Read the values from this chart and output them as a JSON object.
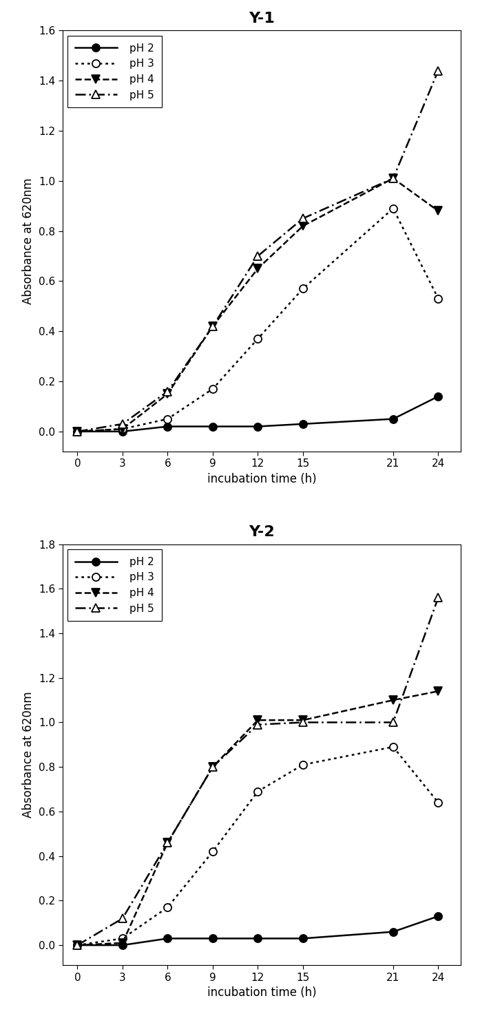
{
  "plots": [
    {
      "title": "Y-1",
      "ylabel": "Absorbance at 620nm",
      "xlabel": "incubation time (h)",
      "ylim": [
        -0.08,
        1.6
      ],
      "yticks": [
        0.0,
        0.2,
        0.4,
        0.6,
        0.8,
        1.0,
        1.2,
        1.4,
        1.6
      ],
      "xticks": [
        0,
        3,
        6,
        9,
        12,
        15,
        21,
        24
      ],
      "xlim": [
        -1,
        25.5
      ],
      "x": [
        0,
        3,
        6,
        9,
        12,
        15,
        21,
        24
      ],
      "series": [
        {
          "label": "pH 2",
          "y": [
            0.0,
            0.0,
            0.02,
            0.02,
            0.02,
            0.03,
            0.05,
            0.14
          ],
          "linestyle": "solid",
          "marker": "o",
          "fillstyle": "full",
          "color": "black"
        },
        {
          "label": "pH 3",
          "y": [
            0.0,
            0.01,
            0.05,
            0.17,
            0.37,
            0.57,
            0.89,
            0.53
          ],
          "linestyle": "dotted",
          "marker": "o",
          "fillstyle": "none",
          "color": "black"
        },
        {
          "label": "pH 4",
          "y": [
            0.0,
            0.01,
            0.15,
            0.42,
            0.65,
            0.82,
            1.01,
            0.88
          ],
          "linestyle": "dashed",
          "marker": "v",
          "fillstyle": "full",
          "color": "black"
        },
        {
          "label": "pH 5",
          "y": [
            0.0,
            0.03,
            0.16,
            0.42,
            0.7,
            0.85,
            1.01,
            1.44
          ],
          "linestyle": "dashdot",
          "marker": "^",
          "fillstyle": "none",
          "color": "black"
        }
      ]
    },
    {
      "title": "Y-2",
      "ylabel": "Absorbance at 620nm",
      "xlabel": "incubation time (h)",
      "ylim": [
        -0.09,
        1.8
      ],
      "yticks": [
        0.0,
        0.2,
        0.4,
        0.6,
        0.8,
        1.0,
        1.2,
        1.4,
        1.6,
        1.8
      ],
      "xticks": [
        0,
        3,
        6,
        9,
        12,
        15,
        21,
        24
      ],
      "xlim": [
        -1,
        25.5
      ],
      "x": [
        0,
        3,
        6,
        9,
        12,
        15,
        21,
        24
      ],
      "series": [
        {
          "label": "pH 2",
          "y": [
            0.0,
            0.0,
            0.03,
            0.03,
            0.03,
            0.03,
            0.06,
            0.13
          ],
          "linestyle": "solid",
          "marker": "o",
          "fillstyle": "full",
          "color": "black"
        },
        {
          "label": "pH 3",
          "y": [
            0.0,
            0.03,
            0.17,
            0.42,
            0.69,
            0.81,
            0.89,
            0.64
          ],
          "linestyle": "dotted",
          "marker": "o",
          "fillstyle": "none",
          "color": "black"
        },
        {
          "label": "pH 4",
          "y": [
            0.0,
            0.01,
            0.46,
            0.8,
            1.01,
            1.01,
            1.1,
            1.14
          ],
          "linestyle": "dashed",
          "marker": "v",
          "fillstyle": "full",
          "color": "black"
        },
        {
          "label": "pH 5",
          "y": [
            0.0,
            0.12,
            0.46,
            0.8,
            0.99,
            1.0,
            1.0,
            1.56
          ],
          "linestyle": "dashdot",
          "marker": "^",
          "fillstyle": "none",
          "color": "black"
        }
      ]
    }
  ],
  "background_color": "#ffffff",
  "legend_fontsize": 11,
  "axis_fontsize": 12,
  "title_fontsize": 16,
  "tick_fontsize": 11,
  "markersize": 8,
  "linewidth": 1.8
}
